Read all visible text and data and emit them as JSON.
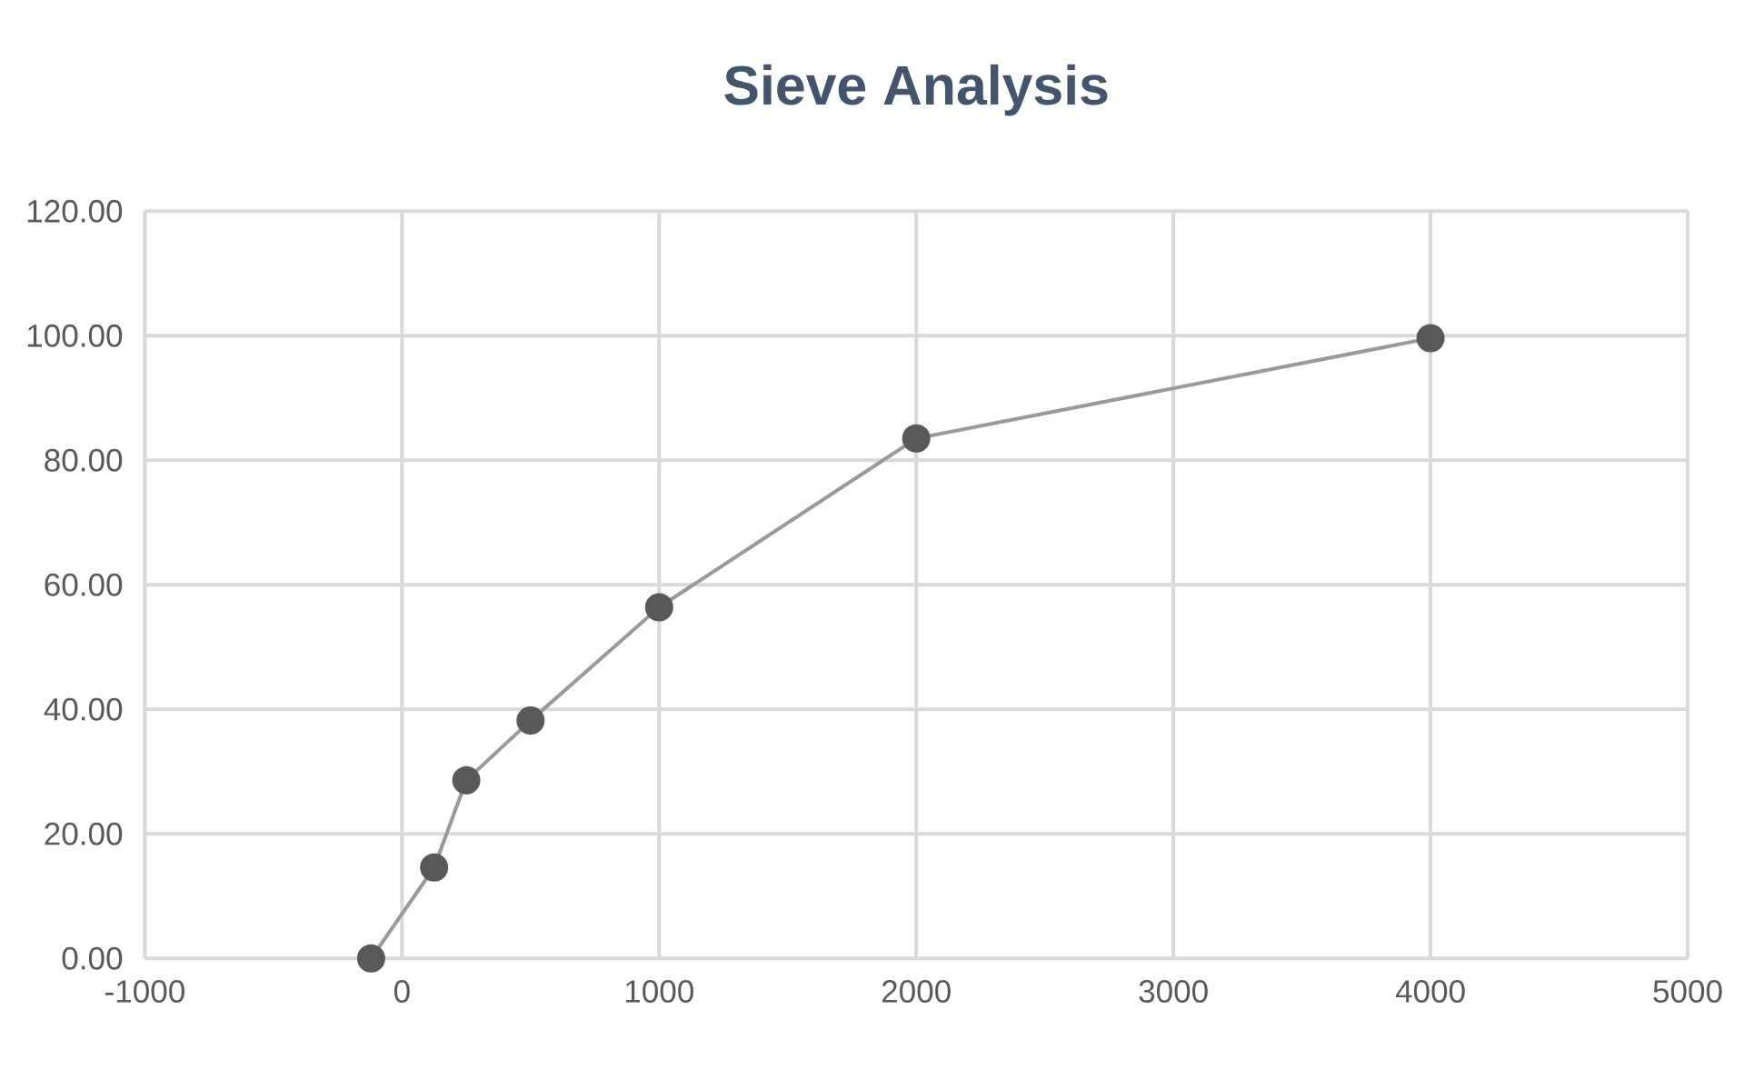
{
  "chart_data": {
    "type": "line",
    "title": "Sieve Analysis",
    "x": [
      -120,
      125,
      250,
      500,
      1000,
      2000,
      4000
    ],
    "series": [
      {
        "color": "#595959",
        "values": [
          0,
          14.6,
          28.6,
          38.2,
          56.4,
          83.5,
          99.6
        ]
      }
    ],
    "xlim": [
      -1000,
      5000
    ],
    "xticks": [
      -1000,
      0,
      1000,
      2000,
      3000,
      4000,
      5000
    ],
    "ylim": [
      0,
      120
    ],
    "yticks": [
      {
        "value": 0,
        "label": "0.00"
      },
      {
        "value": 20,
        "label": "20.00"
      },
      {
        "value": 40,
        "label": "40.00"
      },
      {
        "value": 60,
        "label": "60.00"
      },
      {
        "value": 80,
        "label": "80.00"
      },
      {
        "value": 100,
        "label": "100.00"
      },
      {
        "value": 120,
        "label": "120.00"
      }
    ],
    "grid": true,
    "marker": "circle",
    "line_style": "solid"
  }
}
